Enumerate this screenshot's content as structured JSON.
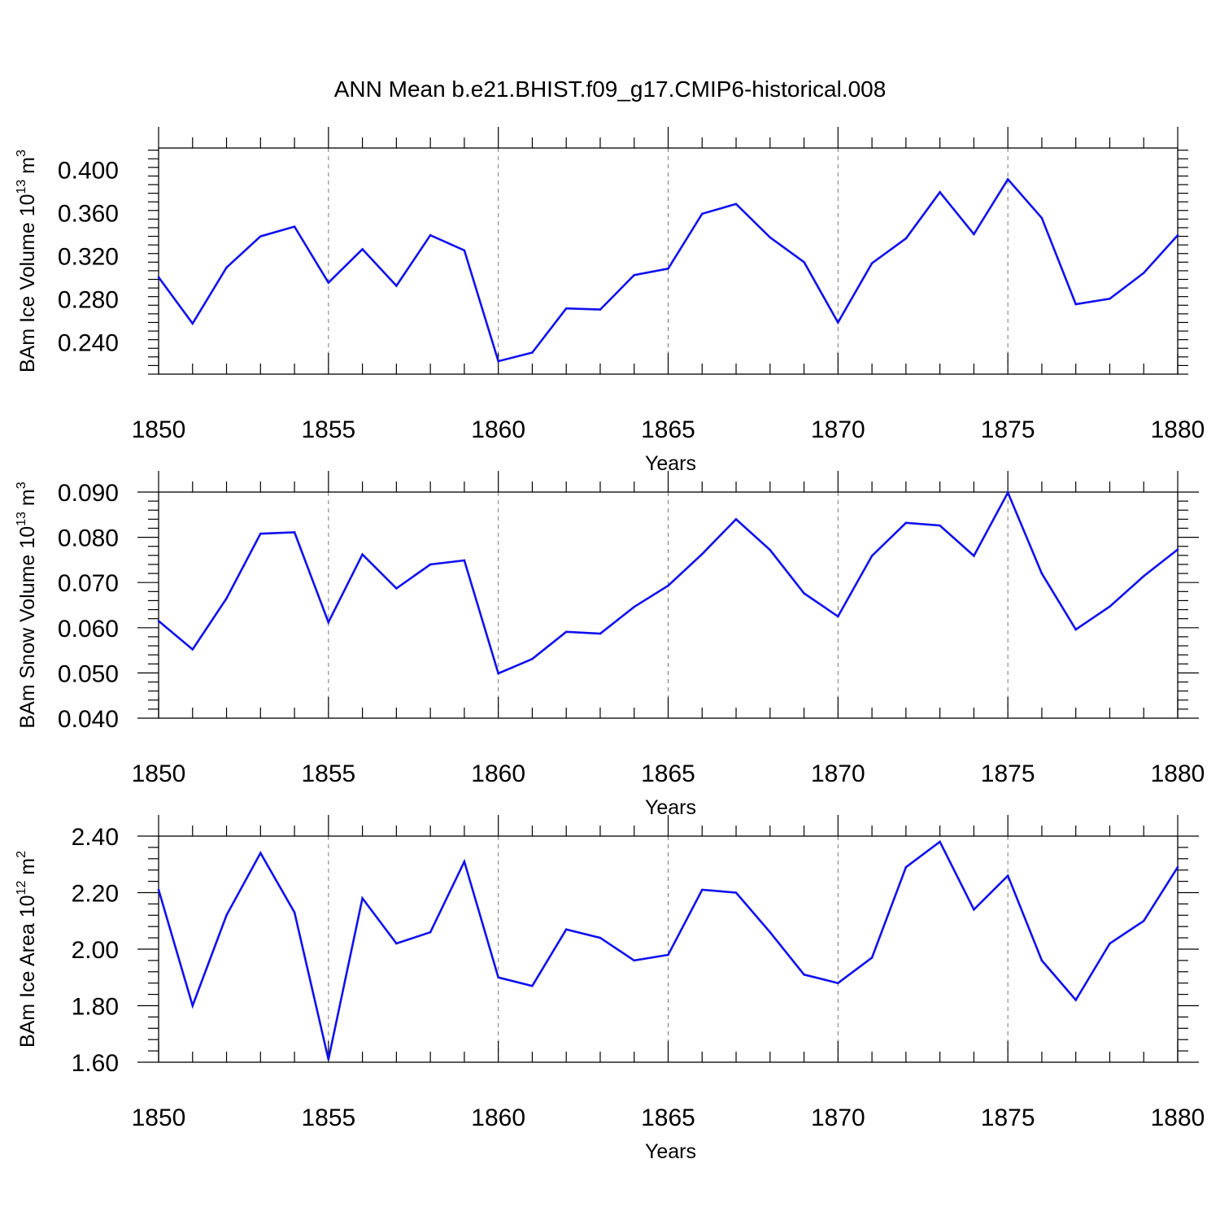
{
  "title": "ANN Mean b.e21.BHIST.f09_g17.CMIP6-historical.008",
  "colors": {
    "line": "#1010ee",
    "frame": "#000000",
    "grid": "#777777"
  },
  "chart_data": [
    {
      "type": "line",
      "xlabel": "Years",
      "ylabel": {
        "text": "BAm Ice Volume 10",
        "exp": "13",
        "unit": " m",
        "unit_exp": "3"
      },
      "xlim": [
        1850,
        1880
      ],
      "ylim": [
        0.21,
        0.42
      ],
      "xticks": [
        1850,
        1855,
        1860,
        1865,
        1870,
        1875,
        1880
      ],
      "xtick_labels": [
        "1850",
        "1855",
        "1860",
        "1865",
        "1870",
        "1875",
        "1880"
      ],
      "yticks": [
        0.24,
        0.28,
        0.32,
        0.36,
        0.4
      ],
      "ytick_labels": [
        "0.240",
        "0.280",
        "0.320",
        "0.360",
        "0.400"
      ],
      "ygrid": false,
      "xgrid": "dashed",
      "series": [
        {
          "x": [
            1850,
            1851,
            1852,
            1853,
            1854,
            1855,
            1856,
            1857,
            1858,
            1859,
            1860,
            1861,
            1862,
            1863,
            1864,
            1865,
            1866,
            1867,
            1868,
            1869,
            1870,
            1871,
            1872,
            1873,
            1874,
            1875,
            1876,
            1877,
            1878,
            1879,
            1880
          ],
          "values": [
            0.3,
            0.257,
            0.309,
            0.338,
            0.347,
            0.295,
            0.326,
            0.292,
            0.339,
            0.325,
            0.222,
            0.23,
            0.271,
            0.27,
            0.302,
            0.308,
            0.359,
            0.368,
            0.337,
            0.314,
            0.258,
            0.313,
            0.336,
            0.379,
            0.34,
            0.391,
            0.355,
            0.275,
            0.28,
            0.304,
            0.339
          ]
        }
      ]
    },
    {
      "type": "line",
      "xlabel": "Years",
      "ylabel": {
        "text": "BAm Snow Volume 10",
        "exp": "13",
        "unit": " m",
        "unit_exp": "3"
      },
      "xlim": [
        1850,
        1880
      ],
      "ylim": [
        0.04,
        0.09
      ],
      "xticks": [
        1850,
        1855,
        1860,
        1865,
        1870,
        1875,
        1880
      ],
      "xtick_labels": [
        "1850",
        "1855",
        "1860",
        "1865",
        "1870",
        "1875",
        "1880"
      ],
      "yticks": [
        0.04,
        0.05,
        0.06,
        0.07,
        0.08,
        0.09
      ],
      "ytick_labels": [
        "0.040",
        "0.050",
        "0.060",
        "0.070",
        "0.080",
        "0.090"
      ],
      "ygrid": false,
      "xgrid": "dashed",
      "series": [
        {
          "x": [
            1850,
            1851,
            1852,
            1853,
            1854,
            1855,
            1856,
            1857,
            1858,
            1859,
            1860,
            1861,
            1862,
            1863,
            1864,
            1865,
            1866,
            1867,
            1868,
            1869,
            1870,
            1871,
            1872,
            1873,
            1874,
            1875,
            1876,
            1877,
            1878,
            1879,
            1880
          ],
          "values": [
            0.0615,
            0.0552,
            0.0665,
            0.0808,
            0.0811,
            0.0612,
            0.0762,
            0.0687,
            0.074,
            0.0749,
            0.0499,
            0.0531,
            0.0591,
            0.0587,
            0.0646,
            0.0693,
            0.0763,
            0.084,
            0.0772,
            0.0676,
            0.0625,
            0.0759,
            0.0832,
            0.0826,
            0.0759,
            0.0899,
            0.072,
            0.0596,
            0.0647,
            0.0714,
            0.0773
          ]
        }
      ]
    },
    {
      "type": "line",
      "xlabel": "Years",
      "ylabel": {
        "text": "BAm Ice Area 10",
        "exp": "12",
        "unit": " m",
        "unit_exp": "2"
      },
      "xlim": [
        1850,
        1880
      ],
      "ylim": [
        1.6,
        2.4
      ],
      "xticks": [
        1850,
        1855,
        1860,
        1865,
        1870,
        1875,
        1880
      ],
      "xtick_labels": [
        "1850",
        "1855",
        "1860",
        "1865",
        "1870",
        "1875",
        "1880"
      ],
      "yticks": [
        1.6,
        1.8,
        2.0,
        2.2,
        2.4
      ],
      "ytick_labels": [
        "1.60",
        "1.80",
        "2.00",
        "2.20",
        "2.40"
      ],
      "ygrid": false,
      "xgrid": "dashed",
      "series": [
        {
          "x": [
            1850,
            1851,
            1852,
            1853,
            1854,
            1855,
            1856,
            1857,
            1858,
            1859,
            1860,
            1861,
            1862,
            1863,
            1864,
            1865,
            1866,
            1867,
            1868,
            1869,
            1870,
            1871,
            1872,
            1873,
            1874,
            1875,
            1876,
            1877,
            1878,
            1879,
            1880
          ],
          "values": [
            2.21,
            1.8,
            2.12,
            2.34,
            2.13,
            1.61,
            2.18,
            2.02,
            2.06,
            2.31,
            1.9,
            1.87,
            2.07,
            2.04,
            1.96,
            1.98,
            2.21,
            2.2,
            2.06,
            1.91,
            1.88,
            1.97,
            2.29,
            2.38,
            2.14,
            2.26,
            1.96,
            1.82,
            2.02,
            2.1,
            2.29
          ]
        }
      ]
    }
  ]
}
